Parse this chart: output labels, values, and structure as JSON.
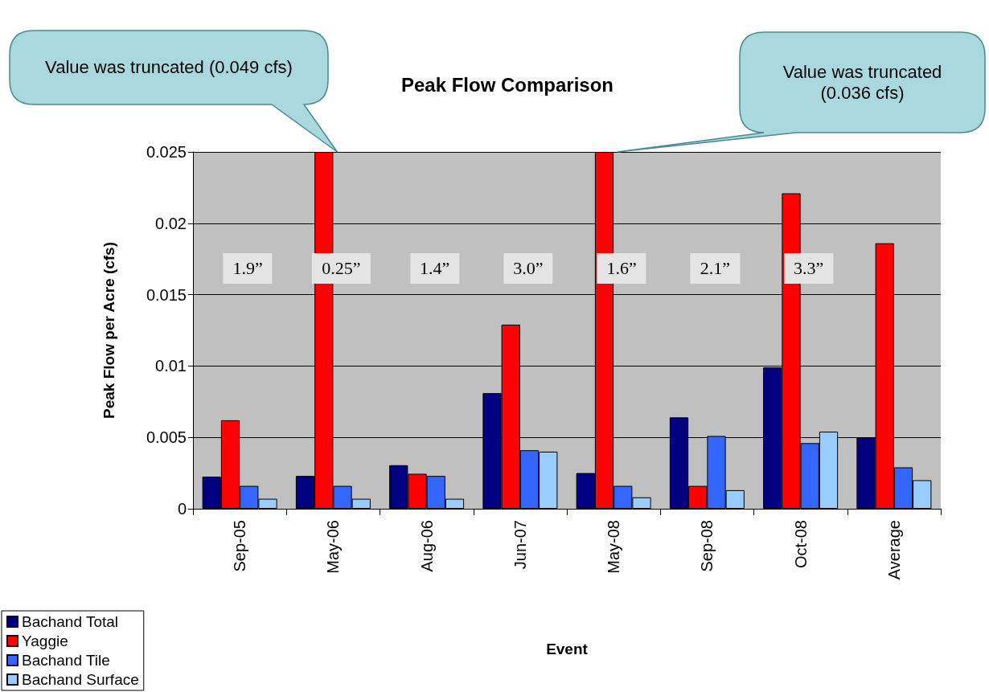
{
  "chart_data": {
    "type": "bar",
    "title": "Peak Flow Comparison",
    "xlabel": "Event",
    "ylabel": "Peak Flow per Acre (cfs)",
    "categories": [
      "Sep-05",
      "May-06",
      "Aug-06",
      "Jun-07",
      "May-08",
      "Sep-08",
      "Oct-08",
      "Average"
    ],
    "series": [
      {
        "name": "Bachand Total",
        "color": "#000080",
        "values": [
          0.00225,
          0.0023,
          0.00305,
          0.0081,
          0.0025,
          0.0064,
          0.0099,
          0.005
        ]
      },
      {
        "name": "Yaggie",
        "color": "#ff0000",
        "values": [
          0.0062,
          0.025,
          0.00245,
          0.0129,
          0.025,
          0.0016,
          0.0221,
          0.0186
        ]
      },
      {
        "name": "Bachand Tile",
        "color": "#3366ff",
        "values": [
          0.0016,
          0.0016,
          0.0023,
          0.0041,
          0.0016,
          0.0051,
          0.0046,
          0.0029
        ]
      },
      {
        "name": "Bachand Surface",
        "color": "#99ccff",
        "values": [
          0.0007,
          0.0007,
          0.0007,
          0.004,
          0.0008,
          0.0013,
          0.0054,
          0.002
        ]
      }
    ],
    "ylim": [
      0,
      0.025
    ],
    "yticks": [
      0,
      0.005,
      0.01,
      0.015,
      0.02,
      0.025
    ],
    "grid": "y",
    "legend": "bottom left",
    "annotations": [
      "Value was truncated (0.049 cfs)",
      "Value was truncated (0.036 cfs)",
      "1.9”",
      "0.25”",
      "1.4”",
      "3.0”",
      "1.6”",
      "2.1”",
      "3.3”"
    ]
  }
}
